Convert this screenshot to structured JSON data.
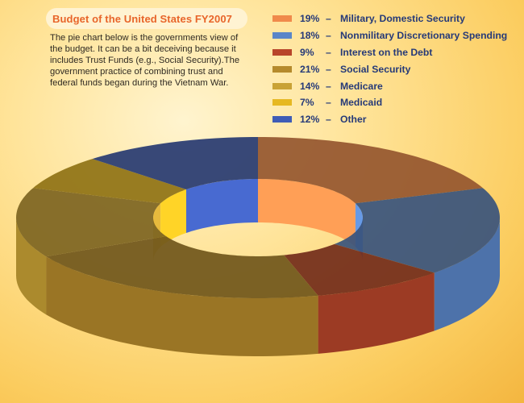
{
  "title": "Budget of the United States FY2007",
  "description_lines": [
    "The pie chart below is the governments view of",
    "the budget. It can be a bit deceiving because  it",
    "includes Trust Funds (e.g., Social Security).The",
    "government practice of combining trust and",
    "federal funds began during the Vietnam War."
  ],
  "chart_data": {
    "type": "pie",
    "style": "3d-donut",
    "legend_position": "top-right",
    "slices": [
      {
        "label": "Military, Domestic Security",
        "value": 19,
        "value_label": "19%",
        "color": "#f08a4b"
      },
      {
        "label": "Nonmilitary Discretionary Spending",
        "value": 18,
        "value_label": "18%",
        "color": "#5a86c8"
      },
      {
        "label": "Interest on the Debt",
        "value": 9,
        "value_label": "9%",
        "color": "#b8452a"
      },
      {
        "label": "Social Security",
        "value": 21,
        "value_label": "21%",
        "color": "#b58a2c"
      },
      {
        "label": "Medicare",
        "value": 14,
        "value_label": "14%",
        "color": "#c9a235"
      },
      {
        "label": "Medicaid",
        "value": 7,
        "value_label": "7%",
        "color": "#e6b822"
      },
      {
        "label": "Other",
        "value": 12,
        "value_label": "12%",
        "color": "#3f5cb6"
      }
    ]
  }
}
